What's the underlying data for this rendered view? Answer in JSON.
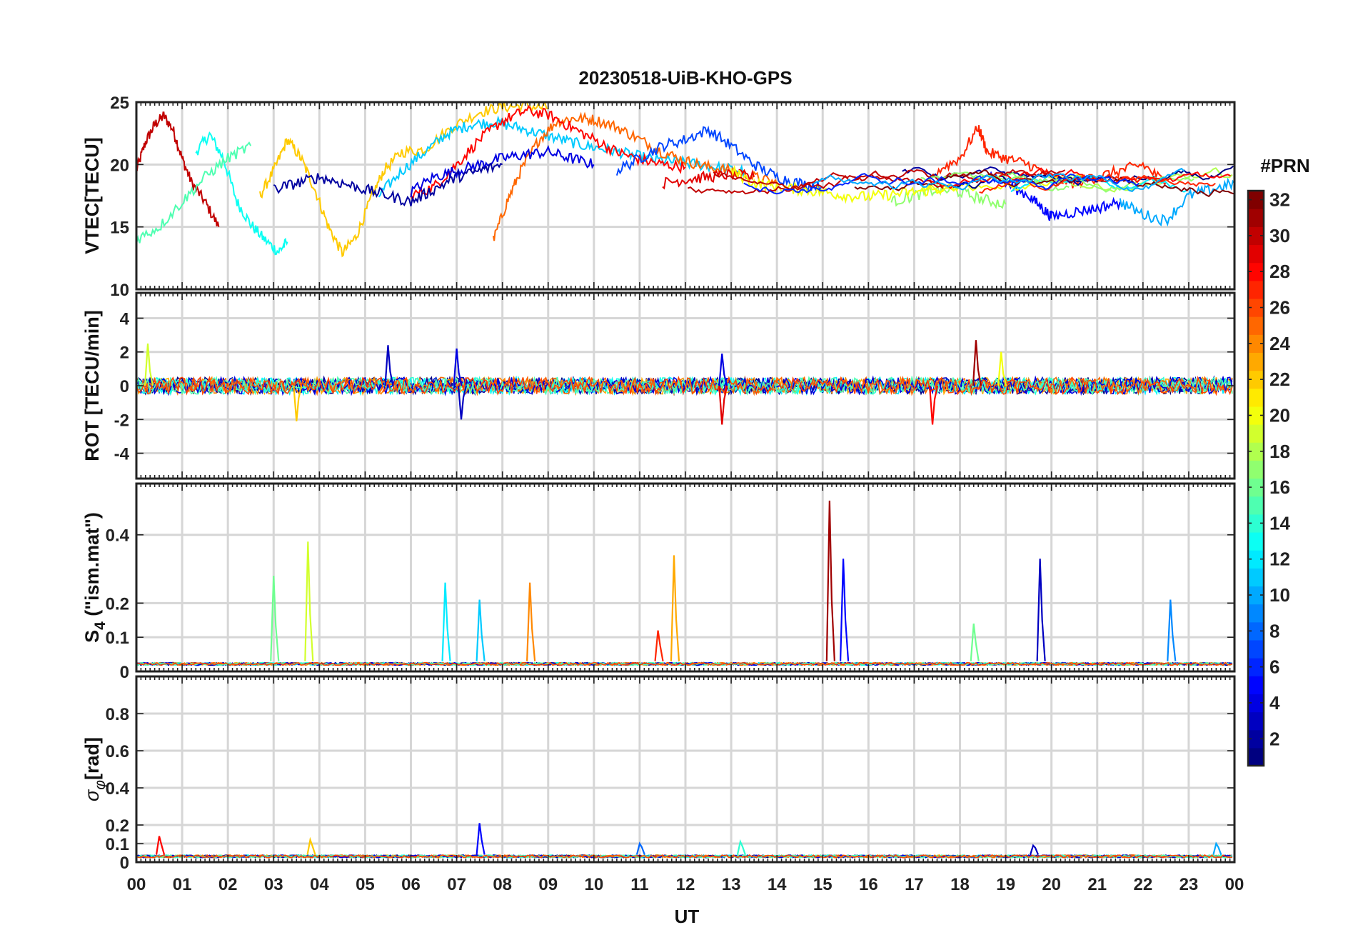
{
  "figure": {
    "title": "20230518-UiB-KHO-GPS",
    "xlabel": "UT",
    "colorbar_label": "#PRN"
  },
  "chart_data": {
    "type": "line",
    "title": "20230518-UiB-KHO-GPS",
    "xlabel": "UT",
    "x_ticks": [
      "00",
      "01",
      "02",
      "03",
      "04",
      "05",
      "06",
      "07",
      "08",
      "09",
      "10",
      "11",
      "12",
      "13",
      "14",
      "15",
      "16",
      "17",
      "18",
      "19",
      "20",
      "21",
      "22",
      "23",
      "00"
    ],
    "xlim": [
      0,
      24
    ],
    "colorbar": {
      "label": "#PRN",
      "range": [
        1,
        32
      ],
      "ticks": [
        2,
        4,
        6,
        8,
        10,
        12,
        14,
        16,
        18,
        20,
        22,
        24,
        26,
        28,
        30,
        32
      ],
      "colormap": "jet"
    },
    "grid": true,
    "panels": [
      {
        "id": "vtec",
        "ylabel": "VTEC[TECU]",
        "ylim": [
          10,
          25
        ],
        "y_ticks": [
          10,
          15,
          20,
          25
        ],
        "y_tick_labels": [
          "10",
          "15",
          "20",
          "25"
        ],
        "baseline": 18.6,
        "series": [
          {
            "prn": 30,
            "x": [
              0.0,
              0.2,
              0.4,
              0.6,
              0.8,
              1.0,
              1.2,
              1.5,
              1.8
            ],
            "y": [
              19.5,
              21.8,
              23.2,
              23.9,
              22.8,
              20.5,
              18.6,
              17.0,
              15.0
            ]
          },
          {
            "prn": 13,
            "x": [
              1.3,
              1.6,
              1.9,
              2.2,
              2.5,
              2.8,
              3.1,
              3.3
            ],
            "y": [
              21.0,
              22.4,
              20.5,
              17.0,
              15.2,
              14.0,
              13.0,
              13.8
            ]
          },
          {
            "prn": 22,
            "x": [
              2.7,
              3.0,
              3.3,
              3.6,
              3.9,
              4.2,
              4.5,
              4.8,
              5.1,
              5.4,
              5.8,
              6.3,
              6.9,
              7.5,
              8.0,
              8.5,
              9.0
            ],
            "y": [
              17.5,
              19.5,
              22.0,
              20.5,
              18.0,
              15.0,
              12.9,
              14.2,
              17.0,
              19.5,
              21.0,
              21.2,
              23.0,
              24.2,
              24.6,
              24.7,
              24.5
            ]
          },
          {
            "prn": 11,
            "x": [
              5.3,
              5.8,
              6.3,
              6.8,
              7.3,
              7.8,
              8.3,
              8.8,
              9.3,
              9.8,
              10.3,
              10.8,
              11.3,
              11.8,
              12.3,
              12.8,
              13.3
            ],
            "y": [
              17.5,
              19.5,
              21.0,
              22.5,
              23.2,
              23.4,
              23.0,
              22.5,
              22.0,
              21.5,
              21.2,
              20.8,
              20.4,
              20.2,
              20.0,
              19.7,
              19.5
            ]
          },
          {
            "prn": 25,
            "x": [
              7.8,
              8.1,
              8.4,
              8.8,
              9.2,
              9.6,
              10.0,
              10.5,
              11.0,
              11.5,
              12.0,
              12.5,
              13.0,
              13.5,
              14.0
            ],
            "y": [
              13.9,
              17.0,
              19.5,
              22.0,
              23.5,
              23.7,
              23.6,
              23.0,
              22.0,
              21.0,
              20.3,
              19.8,
              19.5,
              19.0,
              18.5
            ]
          },
          {
            "prn": 28,
            "x": [
              6.0,
              6.5,
              7.0,
              7.5,
              8.0,
              8.5,
              9.0,
              9.5,
              10.0,
              10.5,
              11.0,
              11.5,
              12.0
            ],
            "y": [
              17.5,
              18.2,
              20.0,
              22.0,
              23.5,
              24.3,
              24.0,
              23.0,
              22.0,
              21.0,
              20.4,
              20.0,
              19.8
            ]
          },
          {
            "prn": 4,
            "x": [
              6.0,
              6.5,
              7.0,
              7.5,
              8.0,
              8.5,
              9.0,
              9.5,
              10.0
            ],
            "y": [
              17.8,
              19.0,
              19.5,
              20.0,
              20.5,
              20.8,
              21.0,
              20.5,
              20.0
            ]
          },
          {
            "prn": 7,
            "x": [
              10.5,
              11.0,
              11.5,
              12.0,
              12.5,
              13.0,
              13.5,
              14.0,
              14.5,
              15.0
            ],
            "y": [
              19.5,
              20.5,
              21.5,
              22.0,
              22.8,
              21.5,
              20.0,
              19.0,
              18.5,
              18.2
            ]
          },
          {
            "prn": 29,
            "x": [
              11.5,
              12.0,
              12.5,
              13.0,
              13.5
            ],
            "y": [
              18.5,
              18.8,
              19.0,
              19.2,
              19.0
            ]
          },
          {
            "prn": 27,
            "x": [
              17.5,
              18.0,
              18.4,
              18.6,
              19.0,
              19.5,
              20.0,
              20.5,
              21.0,
              21.5,
              22.0,
              22.5
            ],
            "y": [
              19.5,
              20.5,
              23.0,
              21.0,
              20.5,
              20.0,
              19.0,
              18.5,
              19.0,
              19.5,
              20.0,
              18.5
            ]
          },
          {
            "prn": 5,
            "x": [
              18.5,
              19.0,
              19.5,
              19.8,
              20.0,
              20.5,
              21.0,
              21.5
            ],
            "y": [
              19.5,
              18.5,
              17.5,
              16.5,
              15.8,
              16.2,
              16.5,
              17.0
            ]
          },
          {
            "prn": 17,
            "x": [
              16.5,
              17.0,
              17.5,
              18.0,
              18.5,
              19.0
            ],
            "y": [
              17.0,
              17.5,
              18.0,
              17.8,
              17.2,
              16.8
            ]
          },
          {
            "prn": 10,
            "x": [
              21.5,
              22.0,
              22.5,
              23.0,
              23.5,
              24.0
            ],
            "y": [
              17.0,
              16.0,
              15.5,
              17.5,
              18.0,
              18.5
            ]
          },
          {
            "prn": 20,
            "x": [
              13.0,
              13.5,
              14.0,
              14.5,
              15.0,
              15.5,
              16.0,
              16.5,
              17.0,
              17.5,
              18.0
            ],
            "y": [
              19.5,
              18.5,
              18.2,
              18.0,
              17.8,
              17.5,
              17.4,
              17.6,
              17.8,
              18.0,
              18.2
            ]
          },
          {
            "prn": 2,
            "x": [
              3.0,
              3.5,
              4.0,
              4.5,
              5.0,
              5.5,
              6.0,
              6.5,
              7.0,
              7.5,
              8.0
            ],
            "y": [
              18.0,
              18.5,
              19.0,
              18.5,
              18.0,
              17.5,
              17.0,
              18.0,
              19.0,
              19.5,
              20.0
            ]
          },
          {
            "prn": 15,
            "x": [
              0.0,
              0.5,
              1.0,
              1.5,
              2.0,
              2.5
            ],
            "y": [
              14.0,
              15.0,
              17.0,
              19.0,
              20.5,
              21.5
            ]
          }
        ]
      },
      {
        "id": "rot",
        "ylabel": "ROT [TECU/min]",
        "ylim": [
          -5.5,
          5.5
        ],
        "y_ticks": [
          -4,
          -2,
          0,
          2,
          4
        ],
        "y_tick_labels": [
          "-4",
          "-2",
          "0",
          "2",
          "4"
        ],
        "baseline": 0,
        "spikes": [
          {
            "prn": 19,
            "x": 0.25,
            "value": 2.5
          },
          {
            "prn": 22,
            "x": 3.5,
            "value": -2.1
          },
          {
            "prn": 3,
            "x": 5.5,
            "value": 2.4
          },
          {
            "prn": 4,
            "x": 7.0,
            "value": 2.2
          },
          {
            "prn": 3,
            "x": 7.1,
            "value": -2.0
          },
          {
            "prn": 29,
            "x": 12.8,
            "value": -2.3
          },
          {
            "prn": 4,
            "x": 12.8,
            "value": 1.9
          },
          {
            "prn": 28,
            "x": 17.4,
            "value": -2.3
          },
          {
            "prn": 31,
            "x": 18.35,
            "value": 2.7
          },
          {
            "prn": 20,
            "x": 18.9,
            "value": 2.0
          }
        ]
      },
      {
        "id": "s4",
        "ylabel": "S_4 (\"ism.mat\")",
        "ylim": [
          0,
          0.55
        ],
        "y_ticks": [
          0,
          0.1,
          0.2,
          0.4
        ],
        "y_tick_labels": [
          "0",
          "0.1",
          "0.2",
          "0.4"
        ],
        "baseline": 0.03,
        "spikes": [
          {
            "prn": 16,
            "x": 3.0,
            "value": 0.28
          },
          {
            "prn": 19,
            "x": 3.75,
            "value": 0.38
          },
          {
            "prn": 12,
            "x": 6.75,
            "value": 0.26
          },
          {
            "prn": 11,
            "x": 7.5,
            "value": 0.21
          },
          {
            "prn": 24,
            "x": 8.6,
            "value": 0.26
          },
          {
            "prn": 23,
            "x": 11.75,
            "value": 0.34
          },
          {
            "prn": 27,
            "x": 11.4,
            "value": 0.12
          },
          {
            "prn": 31,
            "x": 15.15,
            "value": 0.5
          },
          {
            "prn": 5,
            "x": 15.45,
            "value": 0.33
          },
          {
            "prn": 16,
            "x": 18.3,
            "value": 0.14
          },
          {
            "prn": 3,
            "x": 19.75,
            "value": 0.33
          },
          {
            "prn": 9,
            "x": 22.6,
            "value": 0.21
          }
        ]
      },
      {
        "id": "sigma_phi",
        "ylabel": "σ_φ[rad]",
        "ylim": [
          0,
          1.0
        ],
        "y_ticks": [
          0,
          0.1,
          0.2,
          0.4,
          0.6,
          0.8
        ],
        "y_tick_labels": [
          "0",
          "0.1",
          "0.2",
          "0.4",
          "0.6",
          "0.8"
        ],
        "baseline": 0.04,
        "spikes": [
          {
            "prn": 28,
            "x": 0.5,
            "value": 0.14
          },
          {
            "prn": 22,
            "x": 3.8,
            "value": 0.12
          },
          {
            "prn": 5,
            "x": 7.5,
            "value": 0.21
          },
          {
            "prn": 8,
            "x": 11.0,
            "value": 0.1
          },
          {
            "prn": 14,
            "x": 13.2,
            "value": 0.11
          },
          {
            "prn": 3,
            "x": 19.6,
            "value": 0.09
          },
          {
            "prn": 10,
            "x": 23.6,
            "value": 0.1
          }
        ]
      }
    ]
  }
}
